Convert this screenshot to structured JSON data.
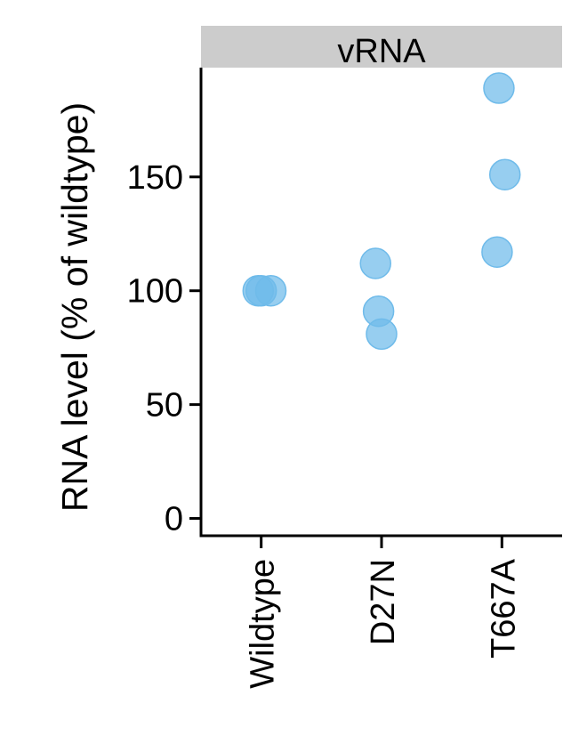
{
  "chart_data": {
    "type": "scatter",
    "facet_label": "vRNA",
    "ylabel": "RNA level (% of wildtype)",
    "xlabel": "",
    "categories": [
      "Wildtype",
      "D27N",
      "T667A"
    ],
    "yticks": [
      0,
      50,
      100,
      150
    ],
    "ylim": [
      -8,
      198
    ],
    "grid": false,
    "legend": "none",
    "point_color": "#6FBBEA",
    "points": [
      {
        "category": "Wildtype",
        "y": 100,
        "jitter": -0.05
      },
      {
        "category": "Wildtype",
        "y": 100,
        "jitter": 0.0
      },
      {
        "category": "Wildtype",
        "y": 100,
        "jitter": 0.16
      },
      {
        "category": "D27N",
        "y": 112,
        "jitter": -0.1
      },
      {
        "category": "D27N",
        "y": 91,
        "jitter": -0.05
      },
      {
        "category": "D27N",
        "y": 81,
        "jitter": 0.0
      },
      {
        "category": "T667A",
        "y": 189,
        "jitter": -0.05
      },
      {
        "category": "T667A",
        "y": 151,
        "jitter": 0.05
      },
      {
        "category": "T667A",
        "y": 117,
        "jitter": -0.08
      }
    ]
  }
}
